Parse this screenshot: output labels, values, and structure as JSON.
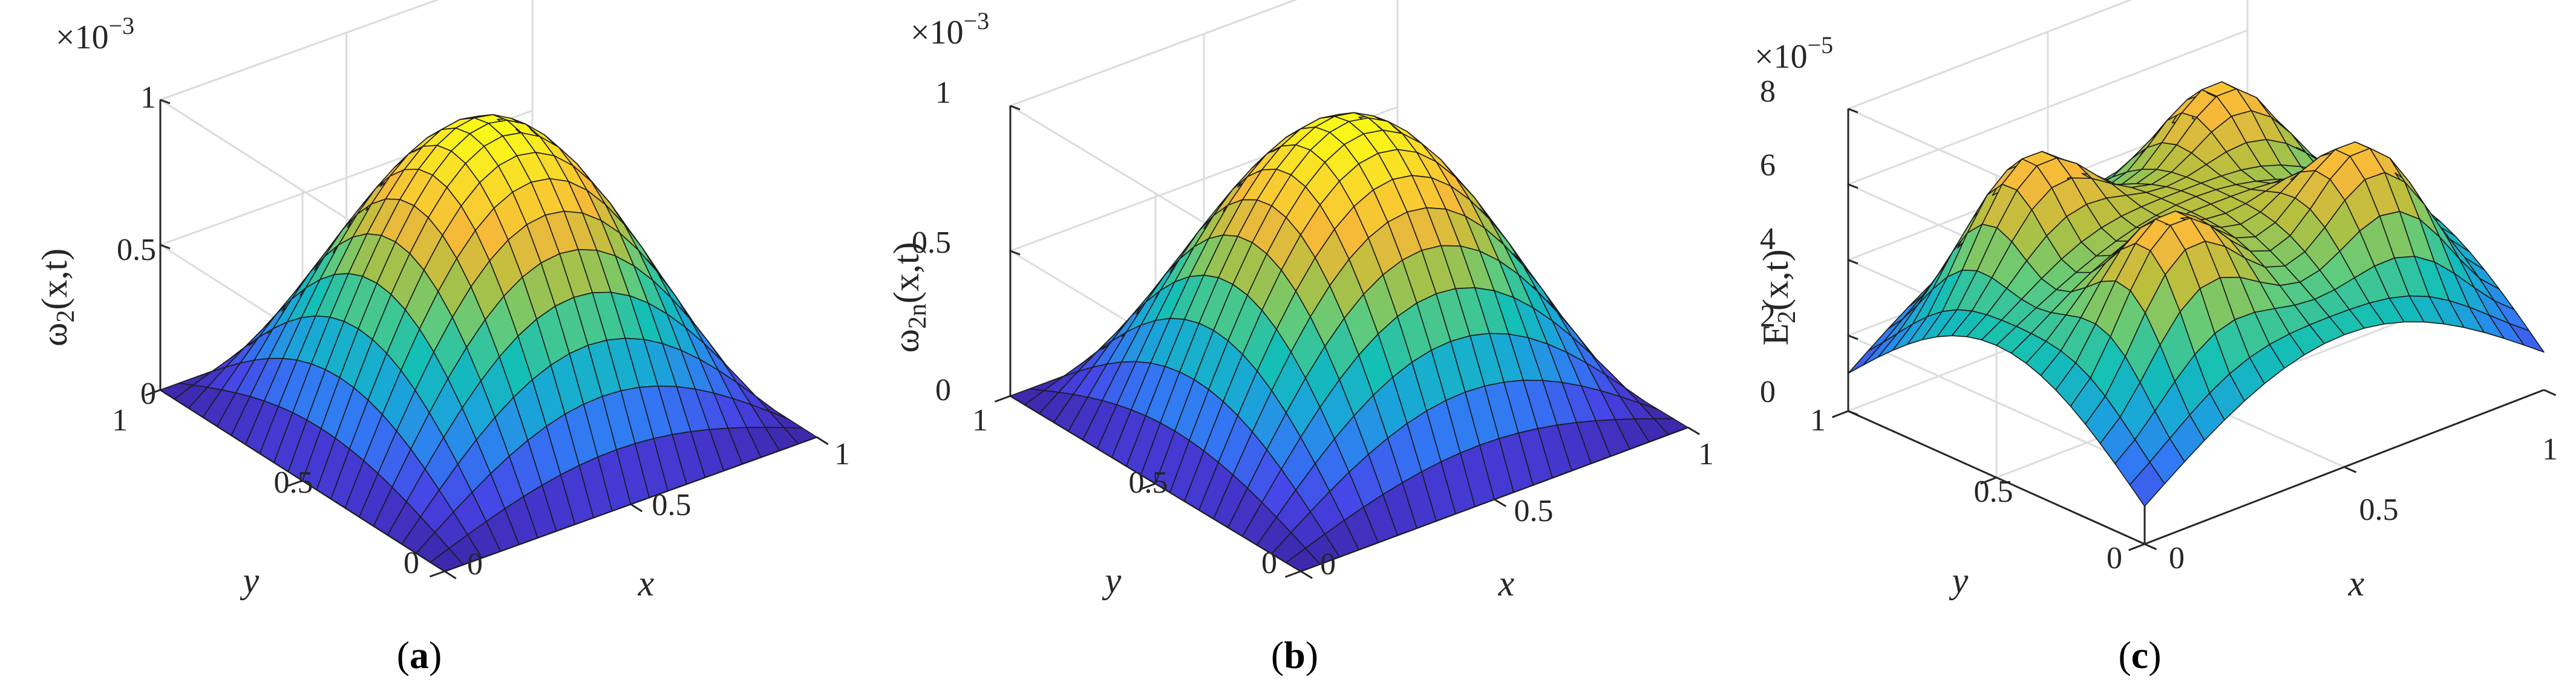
{
  "chart_data": [
    {
      "type": "surface",
      "caption_letter": "a",
      "zlabel_main": "ω",
      "zlabel_sub": "2",
      "zlabel_tail": "(x,t)",
      "xlabel": "x",
      "ylabel": "y",
      "exponent_base": "×10",
      "exponent_power": "−3",
      "function": "sin(pi x) sin(pi y)",
      "z_max": 1,
      "xlim": [
        0,
        1
      ],
      "ylim": [
        0,
        1
      ],
      "zlim": [
        0,
        1
      ],
      "x_ticks": [
        "0",
        "0.5",
        "1"
      ],
      "y_ticks": [
        "0",
        "0.5",
        "1"
      ],
      "z_ticks": [
        "0",
        "0.5",
        "1"
      ],
      "grid": true,
      "colormap": [
        "#3E26A8",
        "#4743E5",
        "#3279F3",
        "#1AA6D9",
        "#14BFB5",
        "#62CB7A",
        "#B5BF3F",
        "#F6B83A",
        "#F9D92A",
        "#F9FB15"
      ]
    },
    {
      "type": "surface",
      "caption_letter": "b",
      "zlabel_main": "ω",
      "zlabel_sub": "2n",
      "zlabel_tail": "(x,t)",
      "xlabel": "x",
      "ylabel": "y",
      "exponent_base": "×10",
      "exponent_power": "−3",
      "function": "sin(pi x) sin(pi y)",
      "z_max": 1,
      "xlim": [
        0,
        1
      ],
      "ylim": [
        0,
        1
      ],
      "zlim": [
        0,
        1
      ],
      "x_ticks": [
        "0",
        "0.5",
        "1"
      ],
      "y_ticks": [
        "0",
        "0.5",
        "1"
      ],
      "z_ticks": [
        "0",
        "0.5",
        "1"
      ],
      "grid": true,
      "colormap": [
        "#3E26A8",
        "#4743E5",
        "#3279F3",
        "#1AA6D9",
        "#14BFB5",
        "#62CB7A",
        "#B5BF3F",
        "#F6B83A",
        "#F9D92A",
        "#F9FB15"
      ]
    },
    {
      "type": "surface",
      "caption_letter": "c",
      "zlabel_main": "E",
      "zlabel_sub": "2",
      "zlabel_tail": "(x,t)",
      "xlabel": "x",
      "ylabel": "y",
      "exponent_base": "×10",
      "exponent_power": "−5",
      "function": "error surface: ~1 at corners, ~3.5 along edges, 6–8 ridges with four peaks near (0.25,0.25),(0.25,0.75),(0.75,0.25),(0.75,0.75)",
      "z_max": 8,
      "xlim": [
        0,
        1
      ],
      "ylim": [
        0,
        1
      ],
      "zlim": [
        0,
        8
      ],
      "x_ticks": [
        "0",
        "0.5",
        "1"
      ],
      "y_ticks": [
        "0",
        "0.5",
        "1"
      ],
      "z_ticks": [
        "0",
        "2",
        "4",
        "6",
        "8"
      ],
      "grid": true,
      "colormap": [
        "#3E26A8",
        "#4743E5",
        "#3279F3",
        "#1AA6D9",
        "#14BFB5",
        "#62CB7A",
        "#B5BF3F",
        "#F6B83A",
        "#F9D92A",
        "#F9FB15"
      ]
    }
  ]
}
